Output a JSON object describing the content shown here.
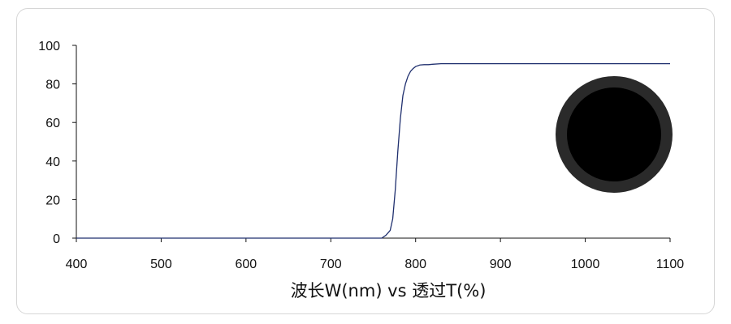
{
  "chart_data": {
    "type": "line",
    "title": "",
    "xlabel": "波长W(nm) vs 透过T(%)",
    "ylabel": "",
    "xlim": [
      400,
      1100
    ],
    "ylim": [
      0,
      100
    ],
    "x_ticks": [
      "400",
      "500",
      "600",
      "700",
      "800",
      "900",
      "1000",
      "1100"
    ],
    "y_ticks": [
      "0",
      "20",
      "40",
      "60",
      "80",
      "100"
    ],
    "grid": false,
    "legend": "none",
    "series": [
      {
        "color": "#1f2f6e",
        "x": [
          400,
          760,
          765,
          770,
          773,
          776,
          779,
          782,
          785,
          788,
          791,
          794,
          797,
          800,
          805,
          810,
          815,
          820,
          830,
          840,
          860,
          900,
          1000,
          1100
        ],
        "y": [
          0,
          0,
          1.5,
          4,
          10,
          25,
          45,
          62,
          74,
          80,
          84,
          86.5,
          88,
          89,
          89.8,
          90,
          90,
          90.2,
          90.5,
          90.5,
          90.5,
          90.5,
          90.5,
          90.5
        ]
      }
    ]
  },
  "sample_image": {
    "icon": "filter-disc-icon",
    "fill_color": "#000000",
    "ring_color": "#2a2a2a"
  }
}
